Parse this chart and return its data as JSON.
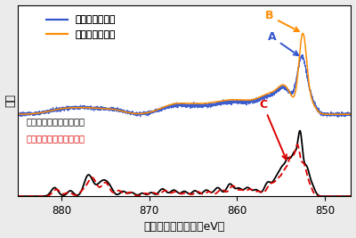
{
  "xlabel": "電子のエネルギー（eV）",
  "ylabel": "強度",
  "xlim": [
    885,
    847
  ],
  "xticks": [
    880,
    870,
    860,
    850
  ],
  "legend_entries": [
    "従来の実験結果",
    "本研究実験結果"
  ],
  "legend_colors": [
    "#3355cc",
    "#ff8c00"
  ],
  "bottom_legend_line1": "本研究理論解析（実線）",
  "bottom_legend_line2": "従来の理論解析（破線）",
  "theory_black": "#000000",
  "theory_red": "#dd0000",
  "ann_A_color": "#3355cc",
  "ann_B_color": "#ff8c00",
  "ann_C_color": "#dd0000",
  "bg_color": "#ebebeb",
  "plot_bg": "#ffffff"
}
